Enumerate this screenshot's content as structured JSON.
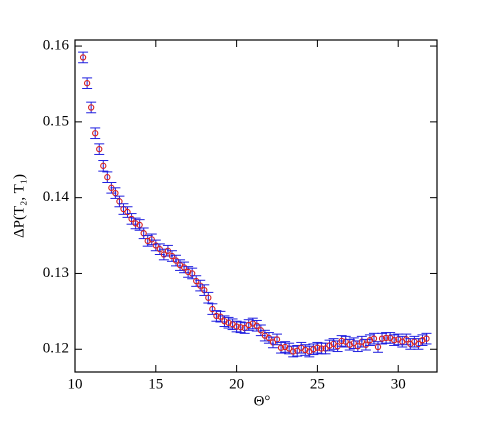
{
  "chart_data": {
    "type": "scatter",
    "xlabel": "Θ°",
    "ylabel": "ΔP(T₂, T₁)",
    "xlim": [
      10,
      32.4
    ],
    "ylim": [
      0.117,
      0.1608
    ],
    "xticks": [
      10,
      15,
      20,
      25,
      30
    ],
    "yticks": [
      0.12,
      0.13,
      0.14,
      0.15,
      0.16
    ],
    "color": "#d62020",
    "error_color": "#2020e0",
    "x": [
      10.5,
      10.75,
      11,
      11.25,
      11.5,
      11.75,
      12,
      12.25,
      12.5,
      12.75,
      13,
      13.25,
      13.5,
      13.75,
      14,
      14.25,
      14.5,
      14.75,
      15,
      15.25,
      15.5,
      15.75,
      16,
      16.25,
      16.5,
      16.75,
      17,
      17.25,
      17.5,
      17.75,
      18,
      18.25,
      18.5,
      18.75,
      19,
      19.25,
      19.5,
      19.75,
      20,
      20.25,
      20.5,
      20.75,
      21,
      21.25,
      21.5,
      21.75,
      22,
      22.25,
      22.5,
      22.75,
      23,
      23.25,
      23.5,
      23.75,
      24,
      24.25,
      24.5,
      24.75,
      25,
      25.25,
      25.5,
      25.75,
      26,
      26.25,
      26.5,
      26.75,
      27,
      27.25,
      27.5,
      27.75,
      28,
      28.25,
      28.5,
      28.75,
      29,
      29.25,
      29.5,
      29.75,
      30,
      30.25,
      30.5,
      30.75,
      31,
      31.25,
      31.5,
      31.75
    ],
    "values": [
      0.1585,
      0.1551,
      0.1519,
      0.1485,
      0.1464,
      0.1442,
      0.1427,
      0.1413,
      0.1406,
      0.1395,
      0.1385,
      0.1381,
      0.1372,
      0.1366,
      0.1364,
      0.1353,
      0.1343,
      0.1345,
      0.1337,
      0.1332,
      0.1325,
      0.133,
      0.1323,
      0.1317,
      0.1311,
      0.1308,
      0.1302,
      0.13,
      0.129,
      0.1284,
      0.1278,
      0.1268,
      0.1253,
      0.1244,
      0.1243,
      0.1237,
      0.1235,
      0.1233,
      0.123,
      0.1229,
      0.1228,
      0.1232,
      0.1234,
      0.1231,
      0.1225,
      0.1218,
      0.1215,
      0.1209,
      0.1213,
      0.1202,
      0.1203,
      0.1201,
      0.1197,
      0.1198,
      0.1202,
      0.1199,
      0.1197,
      0.12,
      0.1202,
      0.1201,
      0.1201,
      0.1205,
      0.1207,
      0.1204,
      0.1211,
      0.121,
      0.1206,
      0.1208,
      0.1204,
      0.121,
      0.1206,
      0.1212,
      0.1214,
      0.1203,
      0.1214,
      0.1215,
      0.1215,
      0.1212,
      0.1213,
      0.121,
      0.1213,
      0.1207,
      0.121,
      0.1207,
      0.1212,
      0.1214
    ],
    "errors": [
      0.0007,
      0.0007,
      0.0007,
      0.0007,
      0.0007,
      0.0007,
      0.0007,
      0.0007,
      0.0007,
      0.0007,
      0.0007,
      0.0007,
      0.0007,
      0.0007,
      0.0007,
      0.0007,
      0.0007,
      0.0007,
      0.0007,
      0.0007,
      0.0007,
      0.0007,
      0.0007,
      0.0007,
      0.0007,
      0.0007,
      0.0007,
      0.0007,
      0.0007,
      0.0007,
      0.0007,
      0.0007,
      0.0007,
      0.0007,
      0.0007,
      0.0007,
      0.0007,
      0.0007,
      0.0007,
      0.0007,
      0.0007,
      0.0007,
      0.0007,
      0.0007,
      0.0007,
      0.0007,
      0.0007,
      0.0007,
      0.0007,
      0.0007,
      0.0007,
      0.0007,
      0.0007,
      0.0007,
      0.0007,
      0.0007,
      0.0007,
      0.0007,
      0.0007,
      0.0007,
      0.0007,
      0.0007,
      0.0007,
      0.0007,
      0.0007,
      0.0007,
      0.0007,
      0.0007,
      0.0007,
      0.0007,
      0.0007,
      0.0007,
      0.0007,
      0.0007,
      0.0007,
      0.0007,
      0.0007,
      0.0007,
      0.0007,
      0.0007,
      0.0007,
      0.0007,
      0.0007,
      0.0007,
      0.0007,
      0.0007
    ]
  }
}
